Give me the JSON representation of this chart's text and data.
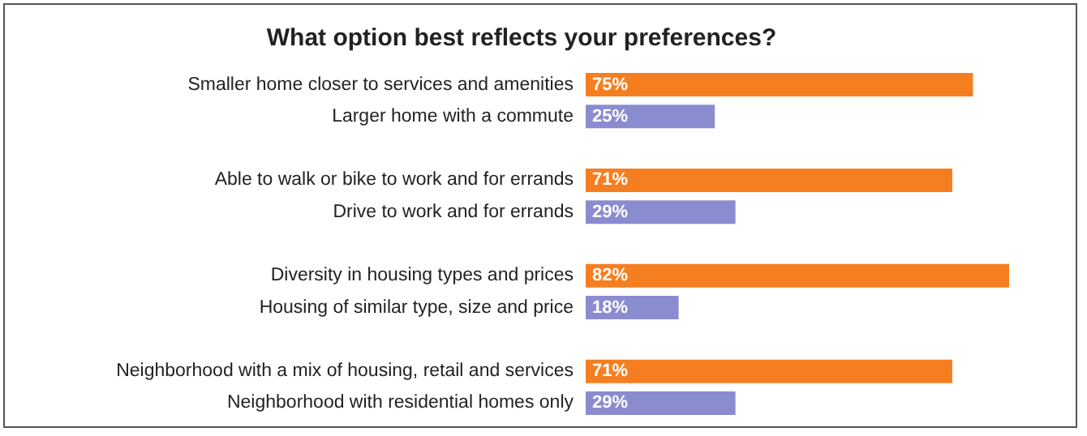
{
  "chart_data": {
    "type": "bar",
    "orientation": "horizontal",
    "title": "What option best reflects your preferences?",
    "categories": [
      "Smaller home closer to services and amenities",
      "Larger home with a commute",
      "Able to walk or bike to work and for errands",
      "Drive to work and for errands",
      "Diversity in housing types and prices",
      "Housing of similar type, size and price",
      "Neighborhood with a mix of housing, retail and services",
      "Neighborhood with residential homes only"
    ],
    "values": [
      75,
      25,
      71,
      29,
      82,
      18,
      71,
      29
    ],
    "colors": [
      "#f57f20",
      "#8b8bd0",
      "#f57f20",
      "#8b8bd0",
      "#f57f20",
      "#8b8bd0",
      "#f57f20",
      "#8b8bd0"
    ],
    "value_labels": [
      "75%",
      "25%",
      "71%",
      "29%",
      "82%",
      "18%",
      "71%",
      "29%"
    ]
  }
}
